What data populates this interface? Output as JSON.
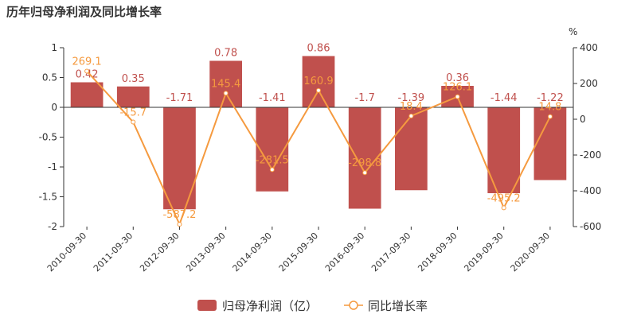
{
  "chart_data": {
    "type": "bar",
    "title": "历年归母净利润及同比增长率",
    "categories": [
      "2010-09-30",
      "2011-09-30",
      "2012-09-30",
      "2013-09-30",
      "2014-09-30",
      "2015-09-30",
      "2016-09-30",
      "2017-09-30",
      "2018-09-30",
      "2019-09-30",
      "2020-09-30"
    ],
    "series": [
      {
        "name": "归母净利润（亿）",
        "type": "bar",
        "axis": "left",
        "color": "#c0504d",
        "values": [
          0.42,
          0.35,
          -1.71,
          0.78,
          -1.41,
          0.86,
          -1.7,
          -1.39,
          0.36,
          -1.44,
          -1.22
        ]
      },
      {
        "name": "同比增长率",
        "type": "line",
        "axis": "right",
        "color": "#f59a3f",
        "values": [
          269.1,
          -15.7,
          -587.2,
          145.4,
          -281.5,
          160.9,
          -298.8,
          18.4,
          126.1,
          -495.2,
          14.8
        ]
      }
    ],
    "value_labels": {
      "bar": [
        "0.42",
        "0.35",
        "-1.71",
        "0.78",
        "-1.41",
        "0.86",
        "-1.7",
        "-1.39",
        "0.36",
        "-1.44",
        "-1.22"
      ],
      "line": [
        "269.1",
        "-15.7",
        "-587.2",
        "145.4",
        "-281.5",
        "160.9",
        "-298.8",
        "18.4",
        "126.1",
        "-495.2",
        "14.8"
      ]
    },
    "left_axis": {
      "ylim": [
        -2,
        1
      ],
      "ticks": [
        "1",
        "0.5",
        "0",
        "-0.5",
        "-1",
        "-1.5",
        "-2"
      ]
    },
    "right_axis": {
      "label": "%",
      "ylim": [
        -600,
        400
      ],
      "ticks": [
        "400",
        "200",
        "0",
        "-200",
        "-400",
        "-600"
      ]
    },
    "grid": false,
    "legend_position": "bottom-center"
  }
}
